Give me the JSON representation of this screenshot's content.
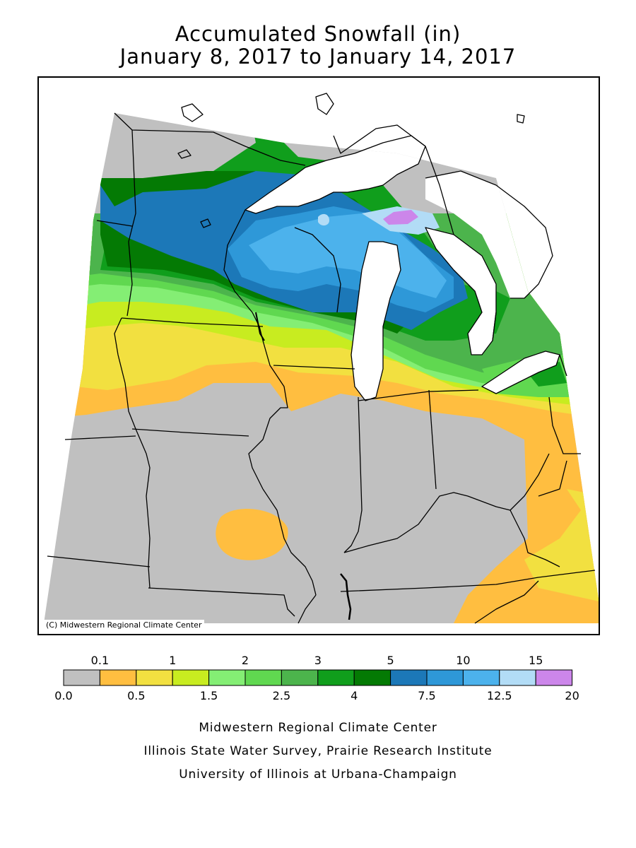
{
  "title": {
    "line1": "Accumulated Snowfall (in)",
    "line2": "January 8, 2017 to January 14, 2017"
  },
  "map": {
    "copyright": "(C) Midwestern Regional Climate Center",
    "colors": {
      "none": "#c0c0c0",
      "c1": "#ffbe40",
      "c2": "#f2e040",
      "c3": "#c8ec20",
      "c4": "#84ee74",
      "c5": "#60d850",
      "c6": "#4cb44c",
      "c7": "#109e1c",
      "c8": "#047a04",
      "c9": "#1c78b8",
      "c10": "#2e98d8",
      "c11": "#4cb2ec",
      "c12": "#b2dcf6",
      "c13": "#cc86ea",
      "water": "#ffffff"
    }
  },
  "legend": {
    "unit": "in",
    "top_labels": [
      "0.1",
      "1",
      "2",
      "3",
      "5",
      "10",
      "15"
    ],
    "bottom_labels": [
      "0.0",
      "0.5",
      "1.5",
      "2.5",
      "4",
      "7.5",
      "12.5",
      "20"
    ],
    "bins": [
      {
        "color": "#c0c0c0"
      },
      {
        "color": "#ffbe40"
      },
      {
        "color": "#f2e040"
      },
      {
        "color": "#c8ec20"
      },
      {
        "color": "#84ee74"
      },
      {
        "color": "#60d850"
      },
      {
        "color": "#4cb44c"
      },
      {
        "color": "#109e1c"
      },
      {
        "color": "#047a04"
      },
      {
        "color": "#1c78b8"
      },
      {
        "color": "#2e98d8"
      },
      {
        "color": "#4cb2ec"
      },
      {
        "color": "#b2dcf6"
      },
      {
        "color": "#cc86ea"
      }
    ]
  },
  "footer": {
    "line1": "Midwestern Regional Climate Center",
    "line2": "Illinois State Water Survey, Prairie Research Institute",
    "line3": "University of Illinois at Urbana-Champaign"
  }
}
